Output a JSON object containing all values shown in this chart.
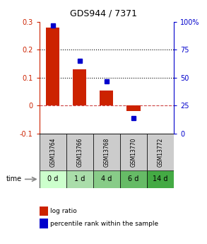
{
  "title": "GDS944 / 7371",
  "categories": [
    "GSM13764",
    "GSM13766",
    "GSM13768",
    "GSM13770",
    "GSM13772"
  ],
  "time_labels": [
    "0 d",
    "1 d",
    "4 d",
    "6 d",
    "14 d"
  ],
  "log_ratio": [
    0.28,
    0.13,
    0.055,
    -0.02,
    null
  ],
  "percentile": [
    97,
    65,
    47,
    14,
    null
  ],
  "bar_color": "#cc2200",
  "dot_color": "#0000cc",
  "ylim_left": [
    -0.1,
    0.3
  ],
  "ylim_right": [
    0,
    100
  ],
  "yticks_left": [
    -0.1,
    0.0,
    0.1,
    0.2,
    0.3
  ],
  "yticks_right": [
    0,
    25,
    50,
    75,
    100
  ],
  "yticklabels_left": [
    "-0.1",
    "0",
    "0.1",
    "0.2",
    "0.3"
  ],
  "yticklabels_right": [
    "0",
    "25",
    "50",
    "75",
    "100%"
  ],
  "hlines": [
    0.1,
    0.2
  ],
  "zero_line_color": "#cc4444",
  "sample_bg_color": "#cccccc",
  "time_bg_colors": [
    "#ccffcc",
    "#aaddaa",
    "#88cc88",
    "#66bb66",
    "#44aa44"
  ],
  "legend_log_ratio": "log ratio",
  "legend_percentile": "percentile rank within the sample",
  "bar_width": 0.5
}
